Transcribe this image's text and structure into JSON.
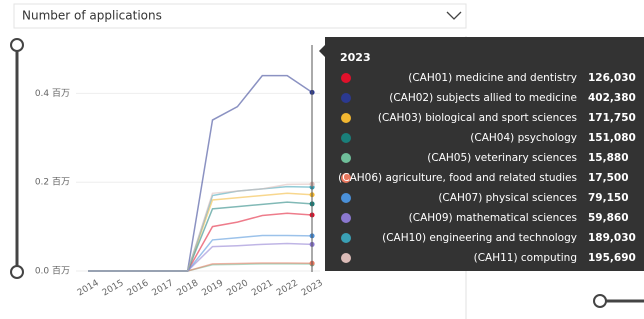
{
  "dropdown": {
    "label": "Number of applications"
  },
  "chart_data": {
    "type": "line",
    "x": [
      2014,
      2015,
      2016,
      2017,
      2018,
      2019,
      2020,
      2021,
      2022,
      2023
    ],
    "ylim": [
      0,
      500000
    ],
    "yticks": [
      {
        "value": 0,
        "label": "0.0 百万"
      },
      {
        "value": 200000,
        "label": "0.2 百万"
      },
      {
        "value": 400000,
        "label": "0.4 百万"
      }
    ],
    "grid": true,
    "series": [
      {
        "name": "(CAH01) medicine and dentistry",
        "color": "#e0112b",
        "values": [
          0,
          0,
          0,
          0,
          0,
          100000,
          110000,
          125000,
          130000,
          126030
        ],
        "value_labels": [
          null,
          null,
          null,
          null,
          null,
          null,
          null,
          null,
          null,
          "126,030"
        ]
      },
      {
        "name": "(CAH02) subjects allied to medicine",
        "color": "#2b3990",
        "values": [
          0,
          0,
          0,
          0,
          0,
          340000,
          370000,
          440000,
          440000,
          402380
        ],
        "value_labels": [
          null,
          null,
          null,
          null,
          null,
          null,
          null,
          null,
          null,
          "402,380"
        ]
      },
      {
        "name": "(CAH03) biological and sport sciences",
        "color": "#f2b731",
        "values": [
          0,
          0,
          0,
          0,
          0,
          160000,
          165000,
          170000,
          175000,
          171750
        ],
        "value_labels": [
          null,
          null,
          null,
          null,
          null,
          null,
          null,
          null,
          null,
          "171,750"
        ]
      },
      {
        "name": "(CAH04) psychology",
        "color": "#1a7f7a",
        "values": [
          0,
          0,
          0,
          0,
          0,
          140000,
          145000,
          150000,
          155000,
          151080
        ],
        "value_labels": [
          null,
          null,
          null,
          null,
          null,
          null,
          null,
          null,
          null,
          "151,080"
        ]
      },
      {
        "name": "(CAH05) veterinary sciences",
        "color": "#6fbf9a",
        "values": [
          0,
          0,
          0,
          0,
          0,
          14000,
          15000,
          16000,
          16000,
          15880
        ],
        "value_labels": [
          null,
          null,
          null,
          null,
          null,
          null,
          null,
          null,
          null,
          "15,880"
        ]
      },
      {
        "name": "(CAH06) agriculture, food and related studies",
        "color": "#e8785f",
        "values": [
          0,
          0,
          0,
          0,
          0,
          16000,
          17000,
          18000,
          18000,
          17500
        ],
        "value_labels": [
          null,
          null,
          null,
          null,
          null,
          null,
          null,
          null,
          null,
          "17,500"
        ]
      },
      {
        "name": "(CAH07) physical sciences",
        "color": "#4a90d9",
        "values": [
          0,
          0,
          0,
          0,
          0,
          70000,
          75000,
          80000,
          80000,
          79150
        ],
        "value_labels": [
          null,
          null,
          null,
          null,
          null,
          null,
          null,
          null,
          null,
          "79,150"
        ]
      },
      {
        "name": "(CAH09) mathematical sciences",
        "color": "#8b78d0",
        "values": [
          0,
          0,
          0,
          0,
          0,
          55000,
          57000,
          60000,
          62000,
          59860
        ],
        "value_labels": [
          null,
          null,
          null,
          null,
          null,
          null,
          null,
          null,
          null,
          "59,860"
        ]
      },
      {
        "name": "(CAH10) engineering and technology",
        "color": "#3aa0b5",
        "values": [
          0,
          0,
          0,
          0,
          0,
          170000,
          180000,
          185000,
          190000,
          189030
        ],
        "value_labels": [
          null,
          null,
          null,
          null,
          null,
          null,
          null,
          null,
          null,
          "189,030"
        ]
      },
      {
        "name": "(CAH11) computing",
        "color": "#dcbcb8",
        "values": [
          0,
          0,
          0,
          0,
          0,
          175000,
          180000,
          185000,
          195000,
          195690
        ],
        "value_labels": [
          null,
          null,
          null,
          null,
          null,
          null,
          null,
          null,
          null,
          "195,690"
        ]
      }
    ]
  }
}
